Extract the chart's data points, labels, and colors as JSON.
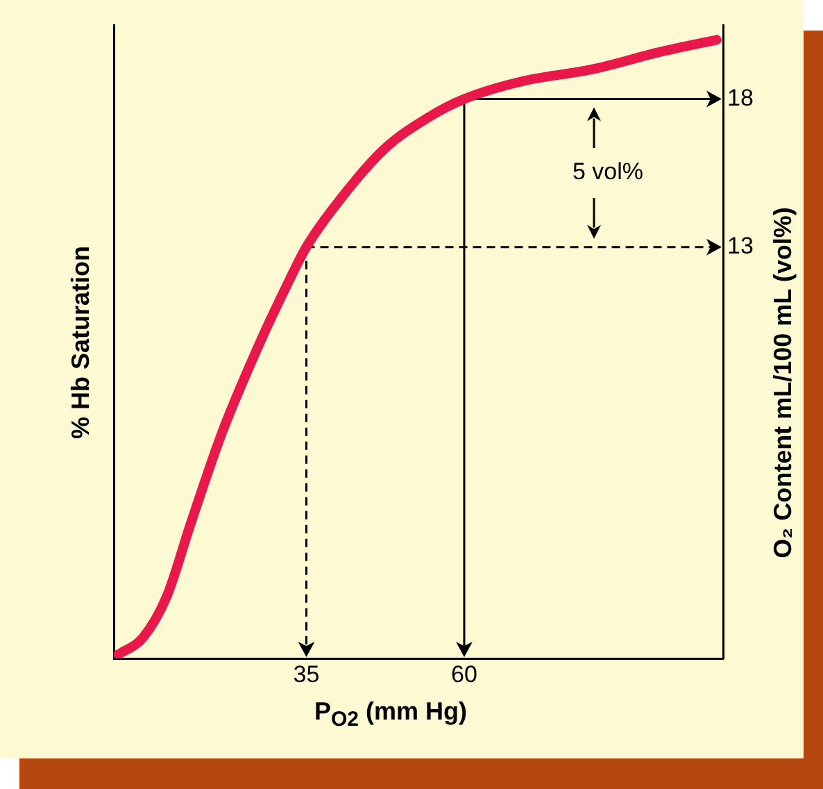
{
  "chart_data": {
    "type": "line",
    "xlabel": "P$_{O2}$ (mm Hg)",
    "ylabel": "% Hb Saturation",
    "y2label": "O₂ Content mL/100 mL (vol%)",
    "xlim": [
      4.5,
      101
    ],
    "xticks": [
      35,
      60
    ],
    "y2lim": [
      -0.9,
      20.5
    ],
    "y2ticks": [
      13,
      18
    ],
    "grid": false,
    "legend": false,
    "marker": "none",
    "line_style": "solid",
    "series": [
      {
        "color": "#e8184a",
        "axis": "y2",
        "x": [
          5.2,
          9.1,
          12.9,
          16.6,
          21.6,
          27.5,
          31.9,
          35,
          40.7,
          47.3,
          54.5,
          60,
          69.2,
          80.2,
          91.2,
          100
        ],
        "values": [
          -0.77,
          -0.2,
          1.2,
          3.6,
          6.7,
          9.7,
          11.7,
          13,
          14.7,
          16.3,
          17.4,
          18,
          18.6,
          19.0,
          19.6,
          20.0
        ]
      }
    ],
    "ref_lines": [
      {
        "axis": "y2",
        "value": 18,
        "line_style": "solid",
        "color": "#000000"
      },
      {
        "axis": "x",
        "value": 60,
        "line_style": "solid",
        "color": "#000000"
      },
      {
        "axis": "y2",
        "value": 13,
        "line_style": "dashed",
        "color": "#000000"
      },
      {
        "axis": "x",
        "value": 35,
        "line_style": "dashed",
        "color": "#000000"
      }
    ],
    "annotations": [
      "5 vol%"
    ]
  }
}
